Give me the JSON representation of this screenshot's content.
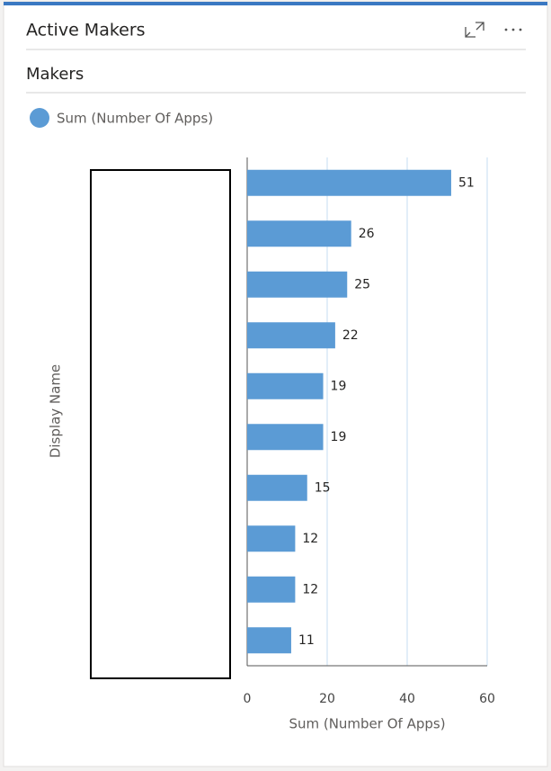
{
  "header": {
    "title": "Active Makers"
  },
  "chart_data": {
    "type": "bar",
    "orientation": "horizontal",
    "title": "Makers",
    "categories": [
      null,
      null,
      null,
      null,
      null,
      null,
      null,
      null,
      null,
      null
    ],
    "series": [
      {
        "name": "Sum (Number Of Apps)",
        "color": "#5b9bd5",
        "values": [
          51,
          26,
          25,
          22,
          19,
          19,
          15,
          12,
          12,
          11
        ]
      }
    ],
    "xlim": [
      0,
      60
    ],
    "xticks": [
      0,
      20,
      40,
      60
    ],
    "xlabel": "Sum (Number Of Apps)",
    "ylabel": "Display Name",
    "grid": true,
    "legend": "top-left"
  }
}
